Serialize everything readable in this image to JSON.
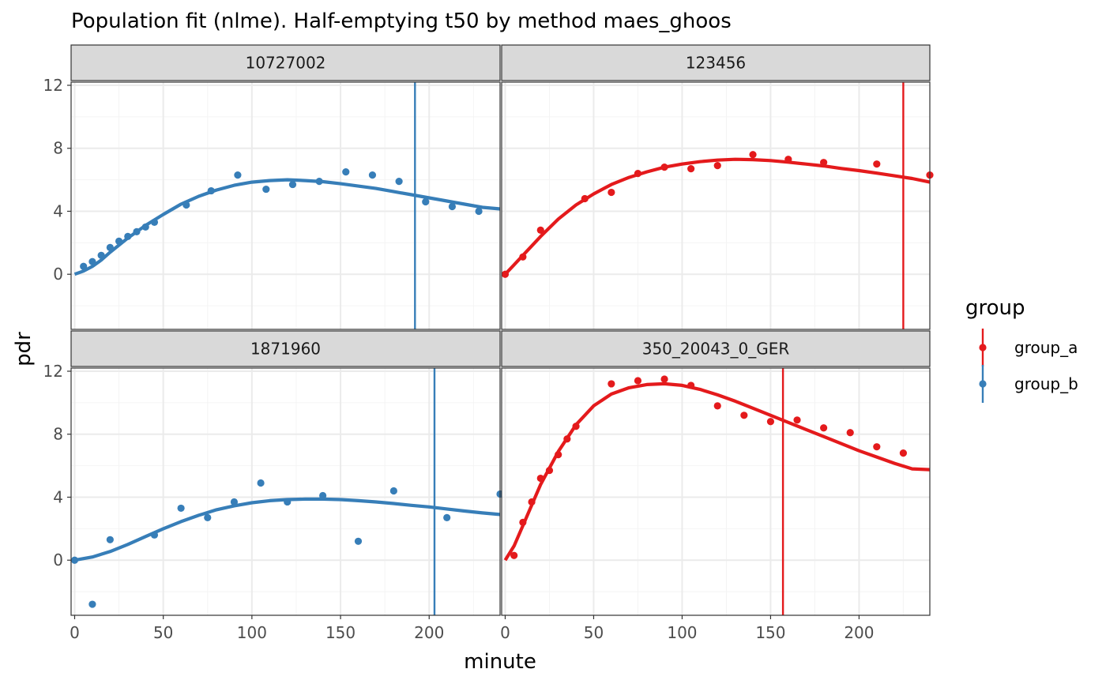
{
  "title": "Population fit (nlme). Half-emptying t50 by method maes_ghoos",
  "xlabel": "minute",
  "ylabel": "pdr",
  "legend": {
    "title": "group",
    "position": "right",
    "entries": [
      {
        "name": "group_a",
        "color": "#E41A1C"
      },
      {
        "name": "group_b",
        "color": "#377EB8"
      }
    ]
  },
  "colors": {
    "group_a": "#E41A1C",
    "group_b": "#377EB8",
    "strip_bg": "#D9D9D9",
    "grid_major": "#EBEBEB",
    "grid_minor": "#F4F4F4",
    "border": "#333333"
  },
  "chart_data": [
    {
      "type": "scatter",
      "panel": "10727002",
      "group": "group_b",
      "xlim": [
        -2,
        240
      ],
      "ylim": [
        -3.5,
        12.2
      ],
      "x_ticks": [
        0,
        50,
        100,
        150,
        200
      ],
      "y_ticks": [
        0,
        4,
        8,
        12
      ],
      "grid": true,
      "t50": 192,
      "points": [
        [
          5,
          0.5
        ],
        [
          10,
          0.8
        ],
        [
          15,
          1.2
        ],
        [
          20,
          1.7
        ],
        [
          25,
          2.1
        ],
        [
          30,
          2.4
        ],
        [
          35,
          2.7
        ],
        [
          40,
          3.0
        ],
        [
          45,
          3.3
        ],
        [
          63,
          4.4
        ],
        [
          77,
          5.3
        ],
        [
          92,
          6.3
        ],
        [
          108,
          5.4
        ],
        [
          123,
          5.7
        ],
        [
          138,
          5.9
        ],
        [
          153,
          6.5
        ],
        [
          168,
          6.3
        ],
        [
          183,
          5.9
        ],
        [
          198,
          4.6
        ],
        [
          213,
          4.3
        ],
        [
          228,
          4.0
        ]
      ],
      "fit": [
        [
          0,
          0
        ],
        [
          5,
          0.2
        ],
        [
          10,
          0.5
        ],
        [
          15,
          0.9
        ],
        [
          20,
          1.4
        ],
        [
          30,
          2.3
        ],
        [
          40,
          3.1
        ],
        [
          50,
          3.8
        ],
        [
          60,
          4.45
        ],
        [
          70,
          4.95
        ],
        [
          80,
          5.35
        ],
        [
          90,
          5.65
        ],
        [
          100,
          5.85
        ],
        [
          110,
          5.95
        ],
        [
          120,
          6.0
        ],
        [
          130,
          5.95
        ],
        [
          140,
          5.88
        ],
        [
          150,
          5.75
        ],
        [
          160,
          5.6
        ],
        [
          170,
          5.45
        ],
        [
          180,
          5.25
        ],
        [
          190,
          5.05
        ],
        [
          200,
          4.85
        ],
        [
          210,
          4.65
        ],
        [
          220,
          4.45
        ],
        [
          230,
          4.25
        ],
        [
          240,
          4.15
        ]
      ]
    },
    {
      "type": "scatter",
      "panel": "123456",
      "group": "group_a",
      "xlim": [
        -2,
        240
      ],
      "ylim": [
        -3.5,
        12.2
      ],
      "x_ticks": [
        0,
        50,
        100,
        150,
        200
      ],
      "y_ticks": [
        0,
        4,
        8,
        12
      ],
      "grid": true,
      "t50": 225,
      "points": [
        [
          0,
          0
        ],
        [
          10,
          1.1
        ],
        [
          20,
          2.8
        ],
        [
          45,
          4.8
        ],
        [
          60,
          5.2
        ],
        [
          75,
          6.4
        ],
        [
          90,
          6.8
        ],
        [
          105,
          6.7
        ],
        [
          120,
          6.9
        ],
        [
          140,
          7.6
        ],
        [
          160,
          7.3
        ],
        [
          180,
          7.1
        ],
        [
          210,
          7.0
        ],
        [
          240,
          6.3
        ]
      ],
      "fit": [
        [
          0,
          0
        ],
        [
          5,
          0.6
        ],
        [
          10,
          1.2
        ],
        [
          20,
          2.4
        ],
        [
          30,
          3.5
        ],
        [
          40,
          4.4
        ],
        [
          50,
          5.1
        ],
        [
          60,
          5.7
        ],
        [
          70,
          6.15
        ],
        [
          80,
          6.5
        ],
        [
          90,
          6.8
        ],
        [
          100,
          7.0
        ],
        [
          110,
          7.15
        ],
        [
          120,
          7.25
        ],
        [
          130,
          7.3
        ],
        [
          140,
          7.28
        ],
        [
          150,
          7.22
        ],
        [
          160,
          7.12
        ],
        [
          170,
          7.0
        ],
        [
          180,
          6.88
        ],
        [
          190,
          6.72
        ],
        [
          200,
          6.58
        ],
        [
          210,
          6.42
        ],
        [
          220,
          6.25
        ],
        [
          230,
          6.08
        ],
        [
          240,
          5.85
        ]
      ]
    },
    {
      "type": "scatter",
      "panel": "1871960",
      "group": "group_b",
      "xlim": [
        -2,
        240
      ],
      "ylim": [
        -3.5,
        12.2
      ],
      "x_ticks": [
        0,
        50,
        100,
        150,
        200
      ],
      "y_ticks": [
        0,
        4,
        8,
        12
      ],
      "grid": true,
      "t50": 203,
      "points": [
        [
          0,
          0
        ],
        [
          10,
          -2.8
        ],
        [
          20,
          1.3
        ],
        [
          45,
          1.6
        ],
        [
          60,
          3.3
        ],
        [
          75,
          2.7
        ],
        [
          90,
          3.7
        ],
        [
          105,
          4.9
        ],
        [
          120,
          3.7
        ],
        [
          140,
          4.1
        ],
        [
          160,
          1.2
        ],
        [
          180,
          4.4
        ],
        [
          210,
          2.7
        ],
        [
          240,
          4.2
        ]
      ],
      "fit": [
        [
          0,
          0
        ],
        [
          10,
          0.2
        ],
        [
          20,
          0.55
        ],
        [
          30,
          1.0
        ],
        [
          40,
          1.5
        ],
        [
          50,
          2.0
        ],
        [
          60,
          2.45
        ],
        [
          70,
          2.85
        ],
        [
          80,
          3.2
        ],
        [
          90,
          3.45
        ],
        [
          100,
          3.65
        ],
        [
          110,
          3.78
        ],
        [
          120,
          3.85
        ],
        [
          130,
          3.88
        ],
        [
          140,
          3.88
        ],
        [
          150,
          3.85
        ],
        [
          160,
          3.78
        ],
        [
          170,
          3.7
        ],
        [
          180,
          3.6
        ],
        [
          190,
          3.48
        ],
        [
          200,
          3.38
        ],
        [
          210,
          3.25
        ],
        [
          220,
          3.12
        ],
        [
          230,
          3.0
        ],
        [
          240,
          2.9
        ]
      ]
    },
    {
      "type": "scatter",
      "panel": "350_20043_0_GER",
      "group": "group_a",
      "xlim": [
        -2,
        240
      ],
      "ylim": [
        -3.5,
        12.2
      ],
      "x_ticks": [
        0,
        50,
        100,
        150,
        200
      ],
      "y_ticks": [
        0,
        4,
        8,
        12
      ],
      "grid": true,
      "t50": 157,
      "points": [
        [
          5,
          0.3
        ],
        [
          10,
          2.4
        ],
        [
          15,
          3.7
        ],
        [
          20,
          5.2
        ],
        [
          25,
          5.7
        ],
        [
          30,
          6.7
        ],
        [
          35,
          7.7
        ],
        [
          40,
          8.5
        ],
        [
          60,
          11.2
        ],
        [
          75,
          11.4
        ],
        [
          90,
          11.5
        ],
        [
          105,
          11.1
        ],
        [
          120,
          9.8
        ],
        [
          135,
          9.2
        ],
        [
          150,
          8.8
        ],
        [
          165,
          8.9
        ],
        [
          180,
          8.4
        ],
        [
          195,
          8.1
        ],
        [
          210,
          7.2
        ],
        [
          225,
          6.8
        ]
      ],
      "fit": [
        [
          0,
          0
        ],
        [
          5,
          0.9
        ],
        [
          10,
          2.2
        ],
        [
          15,
          3.5
        ],
        [
          20,
          4.8
        ],
        [
          30,
          6.9
        ],
        [
          40,
          8.6
        ],
        [
          50,
          9.8
        ],
        [
          60,
          10.55
        ],
        [
          70,
          10.95
        ],
        [
          80,
          11.15
        ],
        [
          90,
          11.2
        ],
        [
          100,
          11.1
        ],
        [
          110,
          10.85
        ],
        [
          120,
          10.5
        ],
        [
          130,
          10.1
        ],
        [
          140,
          9.65
        ],
        [
          150,
          9.2
        ],
        [
          160,
          8.75
        ],
        [
          170,
          8.3
        ],
        [
          180,
          7.85
        ],
        [
          190,
          7.4
        ],
        [
          200,
          6.95
        ],
        [
          210,
          6.55
        ],
        [
          220,
          6.15
        ],
        [
          230,
          5.8
        ],
        [
          240,
          5.75
        ]
      ]
    }
  ]
}
